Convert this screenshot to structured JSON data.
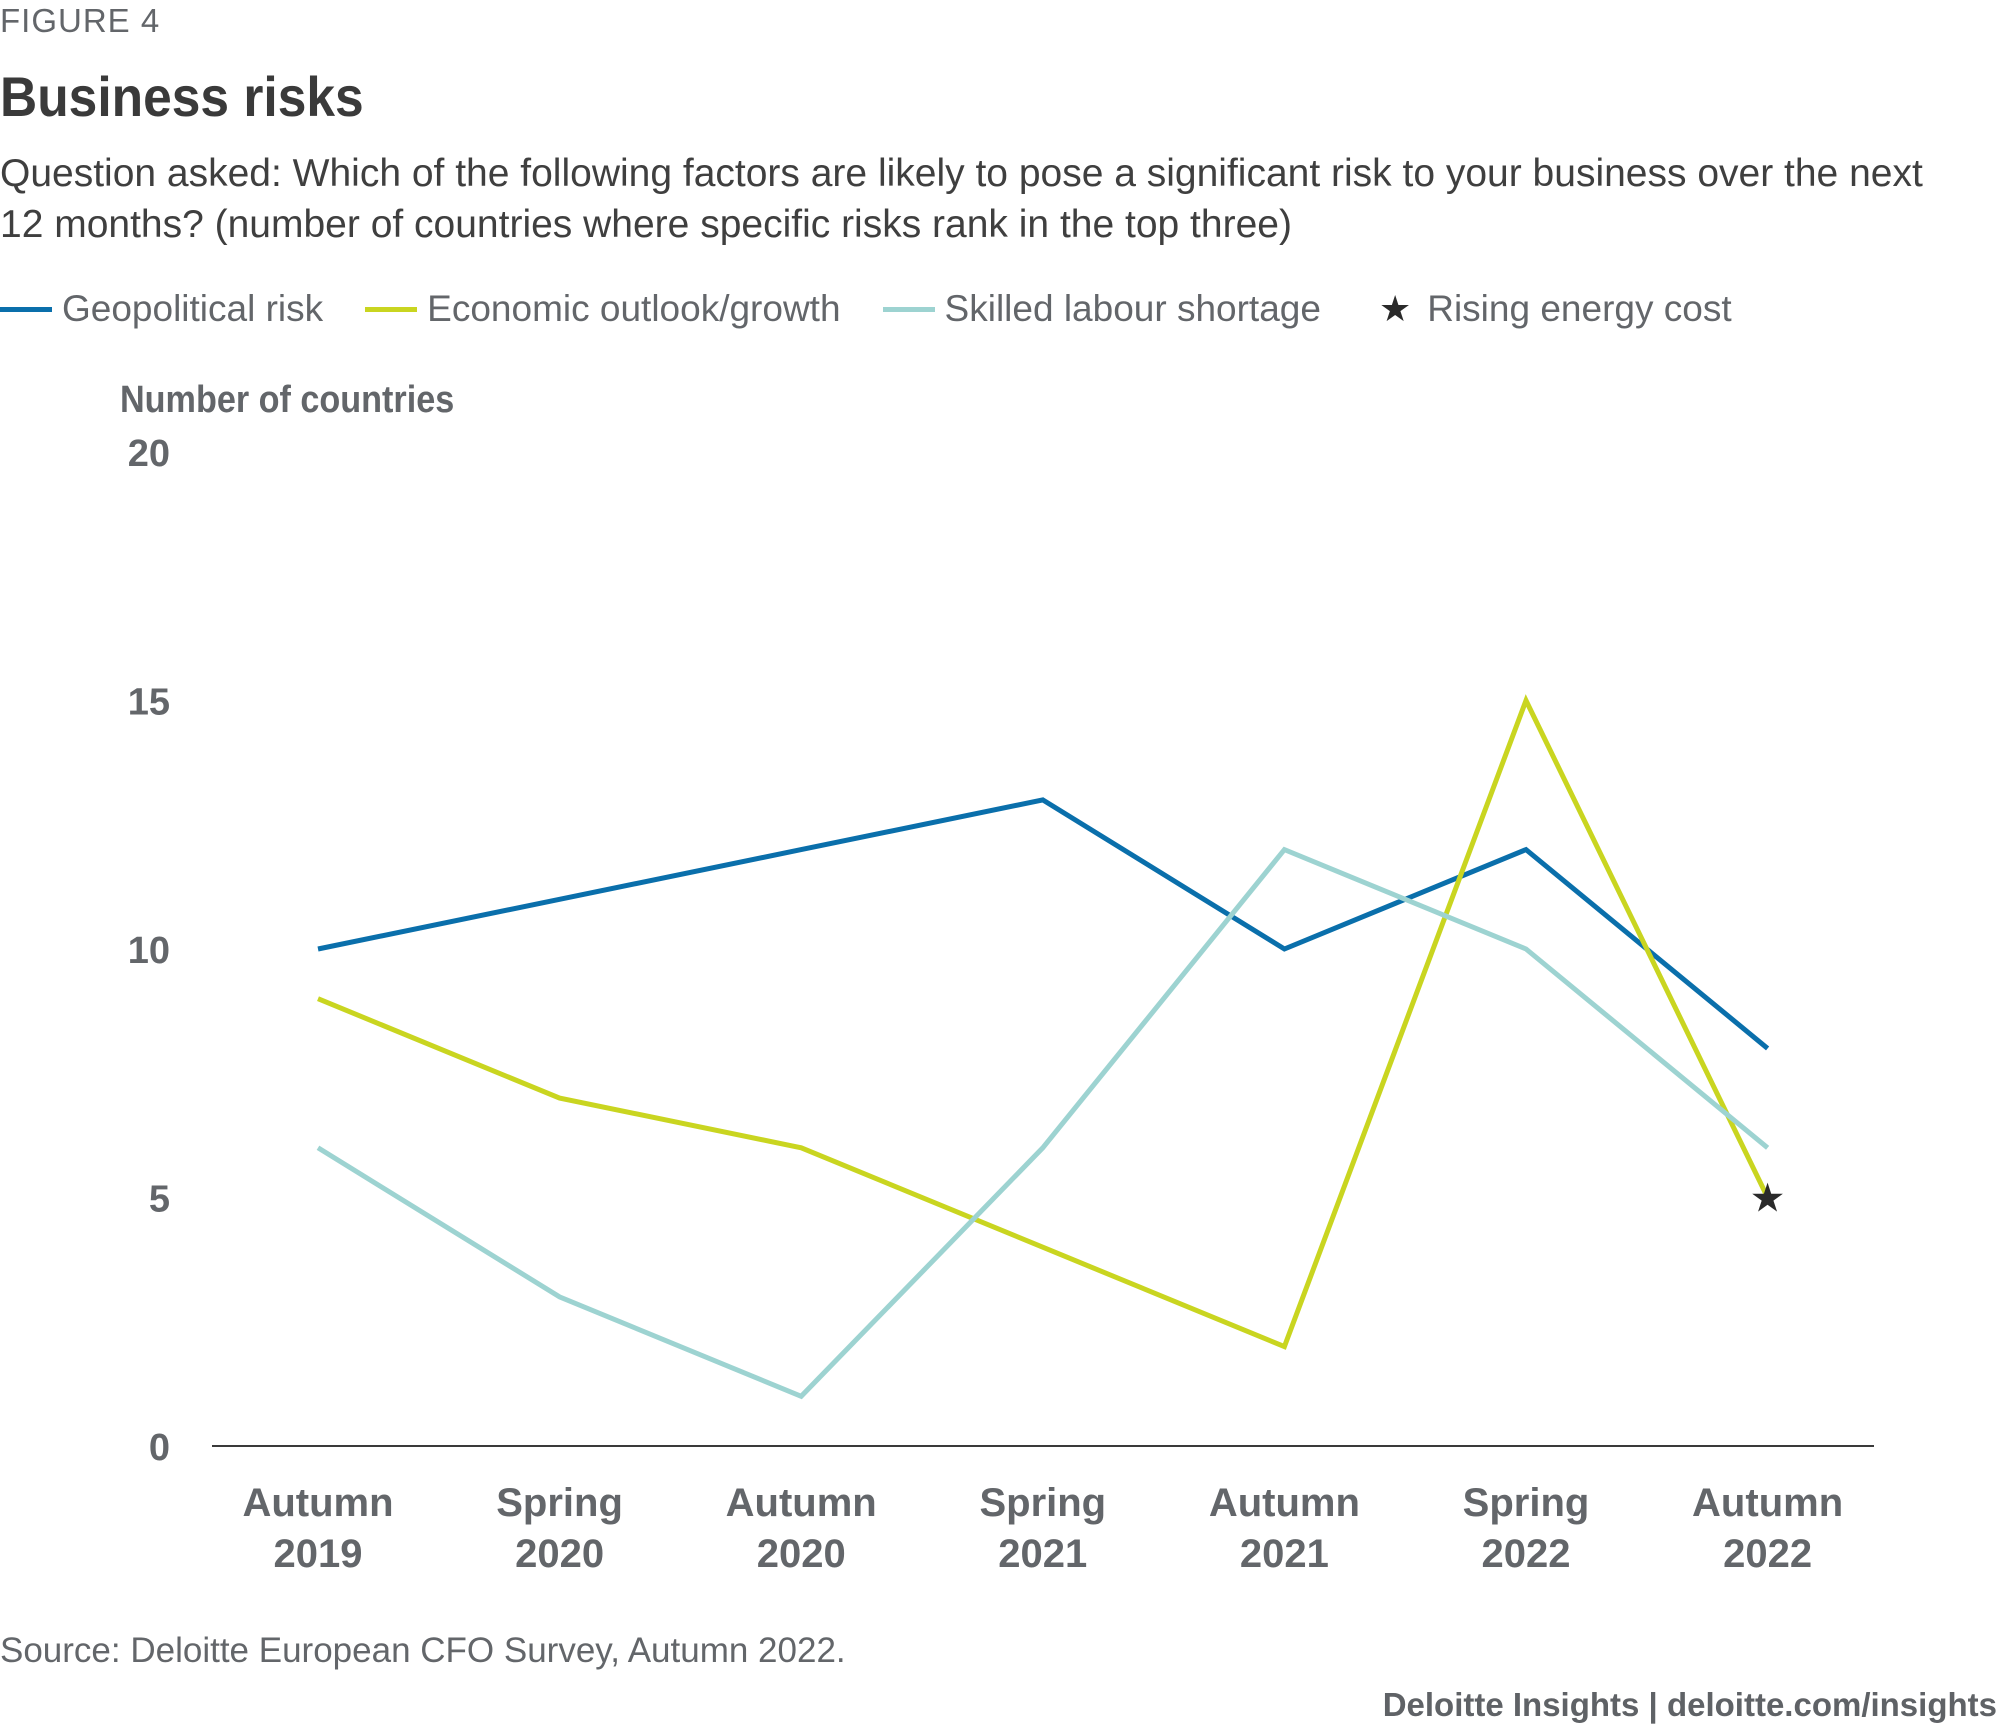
{
  "figure_label": "FIGURE 4",
  "title": "Business risks",
  "subtitle": "Question asked: Which of the following factors are likely to pose a significant risk to your business over the next 12 months? (number of countries where specific risks rank in the top three)",
  "source": "Source: Deloitte European CFO Survey, Autumn 2022.",
  "brand": "Deloitte Insights | deloitte.com/insights",
  "colors": {
    "geopolitical": "#0a6fab",
    "economic": "#c9d520",
    "skilled": "#9dd3d1",
    "star": "#2a2a2a",
    "axis": "#3a3a3a",
    "tick_text": "#63666a"
  },
  "chart_data": {
    "type": "line",
    "ylabel": "Number of countries",
    "ylim": [
      0,
      20
    ],
    "yticks": [
      "0",
      "5",
      "10",
      "15",
      "20"
    ],
    "categories": [
      [
        "Autumn",
        "2019"
      ],
      [
        "Spring",
        "2020"
      ],
      [
        "Autumn",
        "2020"
      ],
      [
        "Spring",
        "2021"
      ],
      [
        "Autumn",
        "2021"
      ],
      [
        "Spring",
        "2022"
      ],
      [
        "Autumn",
        "2022"
      ]
    ],
    "series": [
      {
        "name": "Geopolitical risk",
        "color_key": "geopolitical",
        "values": [
          10,
          11,
          12,
          13,
          10,
          12,
          8
        ]
      },
      {
        "name": "Economic outlook/growth",
        "color_key": "economic",
        "values": [
          9,
          7,
          6,
          4,
          2,
          15,
          5
        ]
      },
      {
        "name": "Skilled labour shortage",
        "color_key": "skilled",
        "values": [
          6,
          3,
          1,
          6,
          12,
          10,
          6
        ]
      }
    ],
    "markers": [
      {
        "name": "Rising energy cost",
        "symbol": "★",
        "category_index": 6,
        "value": 5
      }
    ]
  }
}
